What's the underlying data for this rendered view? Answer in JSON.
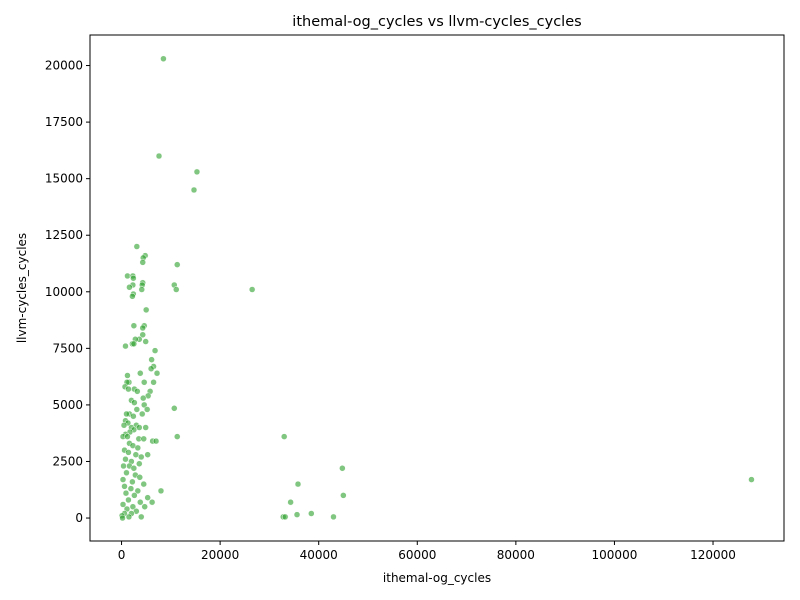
{
  "chart_data": {
    "type": "scatter",
    "title": "ithemal-og_cycles vs llvm-cycles_cycles",
    "xlabel": "ithemal-og_cycles",
    "ylabel": "llvm-cycles_cycles",
    "xlim": [
      -6400,
      134400
    ],
    "ylim": [
      -1015,
      21350
    ],
    "xticks": [
      0,
      20000,
      40000,
      60000,
      80000,
      100000,
      120000
    ],
    "yticks": [
      0,
      2500,
      5000,
      7500,
      10000,
      12500,
      15000,
      17500,
      20000
    ],
    "xtick_labels": [
      "0",
      "20000",
      "40000",
      "60000",
      "80000",
      "100000",
      "120000"
    ],
    "ytick_labels": [
      "0",
      "2500",
      "5000",
      "7500",
      "10000",
      "12500",
      "15000",
      "17500",
      "20000"
    ],
    "grid": false,
    "marker_color": "#2ca02c",
    "marker_edge": "#ffffff",
    "series": [
      {
        "points": [
          [
            8500,
            20300
          ],
          [
            7600,
            16000
          ],
          [
            15300,
            15300
          ],
          [
            14700,
            14500
          ],
          [
            3100,
            12000
          ],
          [
            4800,
            11600
          ],
          [
            4400,
            11500
          ],
          [
            4300,
            11300
          ],
          [
            11300,
            11200
          ],
          [
            1200,
            10700
          ],
          [
            2300,
            10700
          ],
          [
            2400,
            10600
          ],
          [
            4300,
            10400
          ],
          [
            4200,
            10300
          ],
          [
            2300,
            10300
          ],
          [
            1600,
            10200
          ],
          [
            10700,
            10300
          ],
          [
            11100,
            10100
          ],
          [
            4100,
            10100
          ],
          [
            26500,
            10100
          ],
          [
            2400,
            9900
          ],
          [
            2200,
            9800
          ],
          [
            5000,
            9200
          ],
          [
            2500,
            8500
          ],
          [
            4600,
            8500
          ],
          [
            4300,
            8400
          ],
          [
            4300,
            8100
          ],
          [
            3600,
            7900
          ],
          [
            2800,
            7900
          ],
          [
            4900,
            7800
          ],
          [
            2200,
            7700
          ],
          [
            2500,
            7700
          ],
          [
            800,
            7600
          ],
          [
            6800,
            7400
          ],
          [
            6100,
            7000
          ],
          [
            6500,
            6700
          ],
          [
            6000,
            6600
          ],
          [
            7200,
            6400
          ],
          [
            1200,
            6300
          ],
          [
            3800,
            6400
          ],
          [
            1500,
            6000
          ],
          [
            1100,
            6000
          ],
          [
            4600,
            6000
          ],
          [
            6500,
            6000
          ],
          [
            2600,
            5700
          ],
          [
            3200,
            5600
          ],
          [
            5800,
            5600
          ],
          [
            700,
            5800
          ],
          [
            1400,
            5700
          ],
          [
            5400,
            5400
          ],
          [
            4400,
            5300
          ],
          [
            2000,
            5200
          ],
          [
            2600,
            5100
          ],
          [
            4600,
            5000
          ],
          [
            10700,
            4850
          ],
          [
            1600,
            4600
          ],
          [
            3100,
            4800
          ],
          [
            5200,
            4800
          ],
          [
            1000,
            4600
          ],
          [
            2400,
            4500
          ],
          [
            4200,
            4600
          ],
          [
            800,
            4300
          ],
          [
            1300,
            4200
          ],
          [
            3000,
            4100
          ],
          [
            3600,
            4000
          ],
          [
            4900,
            4000
          ],
          [
            500,
            4100
          ],
          [
            2000,
            4000
          ],
          [
            2500,
            3900
          ],
          [
            1700,
            3800
          ],
          [
            800,
            3700
          ],
          [
            300,
            3600
          ],
          [
            1200,
            3600
          ],
          [
            3500,
            3500
          ],
          [
            4500,
            3500
          ],
          [
            6300,
            3400
          ],
          [
            7000,
            3400
          ],
          [
            11300,
            3600
          ],
          [
            33000,
            3600
          ],
          [
            1600,
            3300
          ],
          [
            2300,
            3200
          ],
          [
            3300,
            3100
          ],
          [
            600,
            3000
          ],
          [
            1400,
            2900
          ],
          [
            2900,
            2800
          ],
          [
            5300,
            2800
          ],
          [
            4000,
            2700
          ],
          [
            800,
            2600
          ],
          [
            2000,
            2500
          ],
          [
            3600,
            2400
          ],
          [
            400,
            2300
          ],
          [
            1600,
            2300
          ],
          [
            2500,
            2200
          ],
          [
            44800,
            2200
          ],
          [
            1000,
            2000
          ],
          [
            2800,
            1900
          ],
          [
            3700,
            1800
          ],
          [
            300,
            1700
          ],
          [
            2200,
            1600
          ],
          [
            4500,
            1500
          ],
          [
            35800,
            1500
          ],
          [
            127800,
            1700
          ],
          [
            600,
            1400
          ],
          [
            1900,
            1300
          ],
          [
            3300,
            1200
          ],
          [
            8000,
            1200
          ],
          [
            45000,
            1000
          ],
          [
            900,
            1100
          ],
          [
            2600,
            1000
          ],
          [
            5300,
            900
          ],
          [
            1400,
            800
          ],
          [
            3800,
            700
          ],
          [
            6200,
            700
          ],
          [
            34300,
            700
          ],
          [
            300,
            600
          ],
          [
            2300,
            500
          ],
          [
            4700,
            500
          ],
          [
            1100,
            400
          ],
          [
            3000,
            300
          ],
          [
            600,
            200
          ],
          [
            2000,
            200
          ],
          [
            38500,
            200
          ],
          [
            35600,
            150
          ],
          [
            100,
            100
          ],
          [
            1500,
            50
          ],
          [
            4000,
            50
          ],
          [
            32800,
            50
          ],
          [
            33200,
            50
          ],
          [
            43000,
            50
          ],
          [
            200,
            0
          ]
        ]
      }
    ]
  }
}
